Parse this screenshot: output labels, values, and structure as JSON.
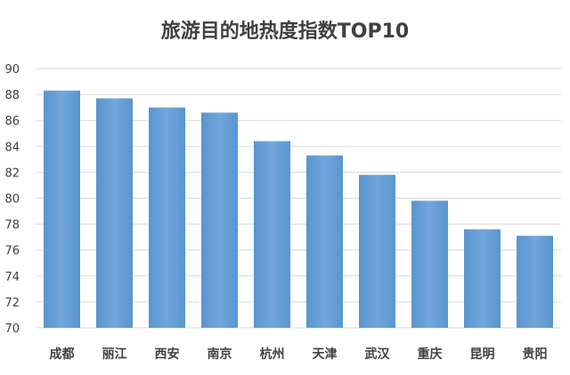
{
  "chart_data": {
    "type": "bar",
    "title": "旅游目的地热度指数TOP10",
    "xlabel": "",
    "ylabel": "",
    "categories": [
      "成都",
      "丽江",
      "西安",
      "南京",
      "杭州",
      "天津",
      "武汉",
      "重庆",
      "昆明",
      "贵阳"
    ],
    "values": [
      88.3,
      87.7,
      87.0,
      86.6,
      84.4,
      83.3,
      81.8,
      79.8,
      77.6,
      77.1
    ],
    "ylim": [
      70,
      90
    ],
    "yticks": [
      70,
      72,
      74,
      76,
      78,
      80,
      82,
      84,
      86,
      88,
      90
    ],
    "grid": true,
    "legend": "none",
    "bar_color": "#5b9bd5",
    "bar_color_light": "#6fa8dc"
  }
}
